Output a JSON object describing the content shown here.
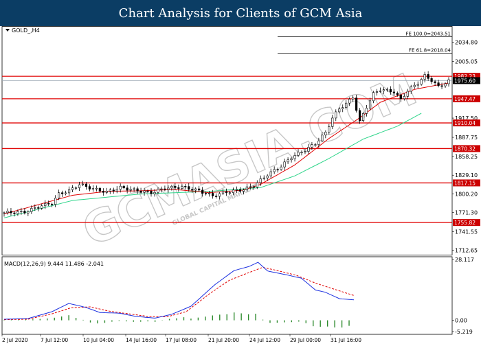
{
  "header": {
    "title": "Chart Analysis for Clients of GCM Asia"
  },
  "watermark": {
    "text": "GCMASIA.COM",
    "sub": "GLOBAL CAPITAL MARKETS"
  },
  "colors": {
    "header_bg": "#0b3d64",
    "bull_candle": "#ffffff",
    "bear_candle": "#000000",
    "level_line": "#e00000",
    "ma_fast": "#e00000",
    "ma_slow": "#2ed58a",
    "macd_line": "#1a2fe0",
    "signal_line": "#e00000",
    "histogram": "#2e8b2e",
    "level_label_bg": "#cc0000"
  },
  "chart_data": [
    {
      "type": "candlestick",
      "symbol_label": "GOLD_,H4",
      "x_ticks": [
        "2 Jul 2020",
        "7 Jul 12:00",
        "10 Jul 04:00",
        "14 Jul 16:00",
        "17 Jul 08:00",
        "21 Jul 20:00",
        "24 Jul 12:00",
        "29 Jul 00:00",
        "31 Jul 16:00"
      ],
      "y_ticks": [
        2034.8,
        2005.05,
        1917.5,
        1887.75,
        1858.25,
        1829.1,
        1800.2,
        1771.3,
        1741.55,
        1712.65
      ],
      "y_tick_labels": [
        "2034.80",
        "2005.05",
        "1917.50",
        "1887.75",
        "1858.25",
        "1829.10",
        "1800.20",
        "1771.30",
        "1741.55",
        "1712.65"
      ],
      "ylim": [
        1706,
        2060
      ],
      "support_resistance": [
        1982.23,
        1947.47,
        1910.04,
        1870.32,
        1817.15,
        1755.82
      ],
      "support_resistance_labels": [
        "1982.23",
        "1947.47",
        "1910.04",
        "1870.32",
        "1817.15",
        "1755.82"
      ],
      "current_price": 1975.6,
      "current_price_label": "1975.60",
      "fibonacci": [
        {
          "label": "FE 61.8=2018.04",
          "price": 2018.04
        },
        {
          "label": "FE 100.0=2043.51",
          "price": 2043.51
        }
      ],
      "keypoints": [
        [
          0,
          1771
        ],
        [
          6,
          1772
        ],
        [
          11,
          1782
        ],
        [
          14,
          1786
        ],
        [
          16,
          1800
        ],
        [
          19,
          1805
        ],
        [
          22,
          1815
        ],
        [
          26,
          1808
        ],
        [
          30,
          1803
        ],
        [
          34,
          1810
        ],
        [
          38,
          1806
        ],
        [
          43,
          1802
        ],
        [
          47,
          1809
        ],
        [
          52,
          1811
        ],
        [
          57,
          1805
        ],
        [
          61,
          1797
        ],
        [
          65,
          1803
        ],
        [
          70,
          1807
        ],
        [
          73,
          1813
        ],
        [
          77,
          1830
        ],
        [
          81,
          1843
        ],
        [
          84,
          1857
        ],
        [
          88,
          1868
        ],
        [
          91,
          1878
        ],
        [
          94,
          1895
        ],
        [
          96,
          1918
        ],
        [
          98,
          1932
        ],
        [
          100,
          1940
        ],
        [
          102,
          1950
        ],
        [
          104,
          1912
        ],
        [
          106,
          1935
        ],
        [
          108,
          1955
        ],
        [
          110,
          1962
        ],
        [
          114,
          1958
        ],
        [
          116,
          1946
        ],
        [
          118,
          1960
        ],
        [
          121,
          1972
        ],
        [
          123,
          1983
        ],
        [
          125,
          1976
        ],
        [
          127,
          1966
        ],
        [
          130,
          1975
        ]
      ],
      "ma_fast_keypoints": [
        [
          0,
          1769
        ],
        [
          20,
          1798
        ],
        [
          30,
          1804
        ],
        [
          40,
          1805
        ],
        [
          50,
          1807
        ],
        [
          60,
          1802
        ],
        [
          70,
          1806
        ],
        [
          75,
          1815
        ],
        [
          85,
          1845
        ],
        [
          95,
          1886
        ],
        [
          104,
          1918
        ],
        [
          110,
          1942
        ],
        [
          120,
          1962
        ],
        [
          130,
          1972
        ]
      ],
      "ma_slow_keypoints": [
        [
          0,
          1763
        ],
        [
          20,
          1790
        ],
        [
          40,
          1800
        ],
        [
          60,
          1804
        ],
        [
          75,
          1810
        ],
        [
          85,
          1828
        ],
        [
          95,
          1855
        ],
        [
          105,
          1885
        ],
        [
          115,
          1905
        ],
        [
          122,
          1925
        ]
      ]
    },
    {
      "type": "macd",
      "label": "MACD(12,26,9) 9.444 11.486 -2.041",
      "params": "12,26,9",
      "macd_value": 9.444,
      "signal_value": 11.486,
      "histogram_value": -2.041,
      "y_ticks": [
        28.117,
        0.0,
        -5.219
      ],
      "y_tick_labels": [
        "28.117",
        "0.00",
        "-5.219"
      ],
      "ylim": [
        -5.219,
        28.117
      ],
      "macd_keypoints": [
        [
          0,
          0.5
        ],
        [
          10,
          0.8
        ],
        [
          20,
          4.0
        ],
        [
          27,
          7.8
        ],
        [
          34,
          6.0
        ],
        [
          40,
          3.6
        ],
        [
          48,
          3.3
        ],
        [
          55,
          1.8
        ],
        [
          63,
          1.0
        ],
        [
          70,
          2.8
        ],
        [
          78,
          6.5
        ],
        [
          88,
          16.5
        ],
        [
          96,
          23.0
        ],
        [
          102,
          24.8
        ],
        [
          106,
          26.8
        ],
        [
          110,
          22.8
        ],
        [
          118,
          21.0
        ],
        [
          124,
          19.5
        ],
        [
          130,
          14.0
        ],
        [
          134,
          13.0
        ],
        [
          140,
          10.0
        ],
        [
          146,
          9.444
        ]
      ],
      "signal_keypoints": [
        [
          0,
          0.3
        ],
        [
          10,
          0.5
        ],
        [
          20,
          3.0
        ],
        [
          28,
          5.8
        ],
        [
          36,
          6.2
        ],
        [
          44,
          4.2
        ],
        [
          52,
          3.0
        ],
        [
          60,
          1.8
        ],
        [
          68,
          1.6
        ],
        [
          76,
          4.0
        ],
        [
          86,
          12.5
        ],
        [
          94,
          18.5
        ],
        [
          102,
          22.0
        ],
        [
          108,
          24.5
        ],
        [
          114,
          23.0
        ],
        [
          122,
          20.8
        ],
        [
          130,
          17.2
        ],
        [
          138,
          14.3
        ],
        [
          146,
          11.486
        ]
      ]
    }
  ]
}
